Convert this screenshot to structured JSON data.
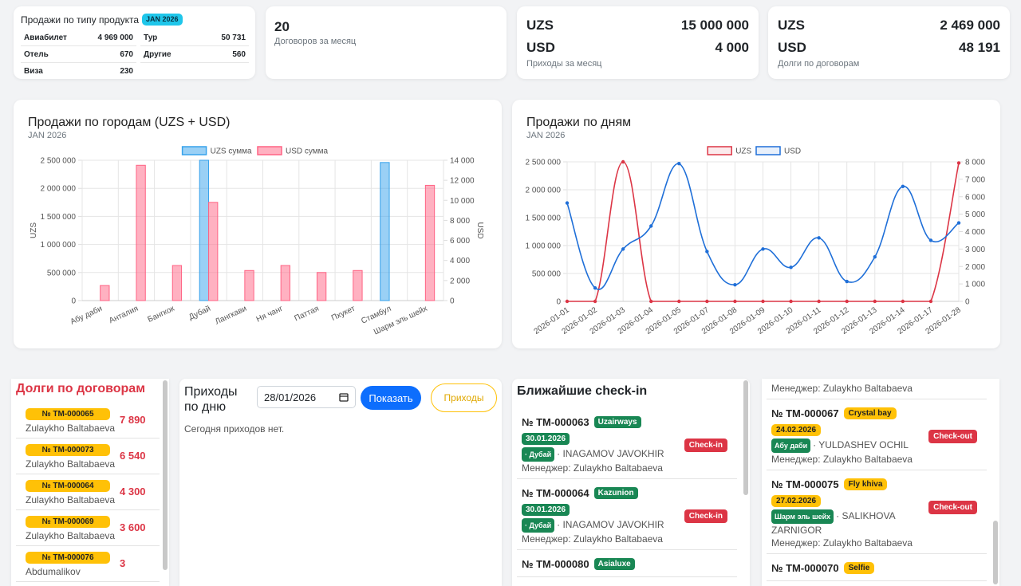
{
  "product_sales": {
    "title": "Продажи по типу продукта",
    "badge": "JAN 2026",
    "items": [
      {
        "label": "Авиабилет",
        "value": "4 969 000"
      },
      {
        "label": "Тур",
        "value": "50 731"
      },
      {
        "label": "Отель",
        "value": "670"
      },
      {
        "label": "Другие",
        "value": "560"
      },
      {
        "label": "Виза",
        "value": "230"
      }
    ]
  },
  "contracts": {
    "value": "20",
    "caption": "Договоров за месяц"
  },
  "income": {
    "rows": [
      {
        "currency": "UZS",
        "amount": "15 000 000"
      },
      {
        "currency": "USD",
        "amount": "4 000"
      }
    ],
    "caption": "Приходы за месяц"
  },
  "debts_summary": {
    "rows": [
      {
        "currency": "UZS",
        "amount": "2 469 000"
      },
      {
        "currency": "USD",
        "amount": "48 191"
      }
    ],
    "caption": "Долги по договорам"
  },
  "chart_data": [
    {
      "type": "bar",
      "title": "Продажи по городам (UZS + USD)",
      "subtitle": "JAN 2026",
      "categories": [
        "Абу даби",
        "Анталия",
        "Бангкок",
        "Дубай",
        "Лангкави",
        "Ня чанг",
        "Паттая",
        "Пхукет",
        "Стамбул",
        "Шарм эль шейх"
      ],
      "series": [
        {
          "name": "UZS сумма",
          "color": "#36a2eb",
          "values": [
            0,
            0,
            0,
            2500000,
            0,
            0,
            0,
            0,
            2460000,
            0
          ]
        },
        {
          "name": "USD сумма",
          "color": "#ff6384",
          "axis": "y2",
          "values": [
            1500,
            13500,
            3500,
            9800,
            3000,
            3500,
            2800,
            3000,
            0,
            11500
          ]
        }
      ],
      "ylabel": "UZS",
      "y2label": "USD",
      "ylim": [
        0,
        2500000
      ],
      "yticks": [
        0,
        {
          "value": 500000,
          "label": "500 000"
        },
        {
          "value": 1000000,
          "label": "1 000 000"
        },
        {
          "value": 1500000,
          "label": "1 500 000"
        },
        {
          "value": 2000000,
          "label": "2 000 000"
        },
        {
          "value": 2500000,
          "label": "2 500 000"
        }
      ],
      "y2lim": [
        0,
        14000
      ],
      "y2ticks": [
        0,
        {
          "value": 2000,
          "label": "2 000"
        },
        {
          "value": 4000,
          "label": "4 000"
        },
        {
          "value": 6000,
          "label": "6 000"
        },
        {
          "value": 8000,
          "label": "8 000"
        },
        {
          "value": 10000,
          "label": "10 000"
        },
        {
          "value": 12000,
          "label": "12 000"
        },
        {
          "value": 14000,
          "label": "14 000"
        }
      ],
      "grid": true,
      "legend": "top"
    },
    {
      "type": "line",
      "title": "Продажи по дням",
      "subtitle": "JAN 2026",
      "categories": [
        "2026-01-01",
        "2026-01-02",
        "2026-01-03",
        "2026-01-04",
        "2026-01-05",
        "2026-01-07",
        "2026-01-08",
        "2026-01-09",
        "2026-01-10",
        "2026-01-11",
        "2026-01-12",
        "2026-01-13",
        "2026-01-14",
        "2026-01-17",
        "2026-01-28"
      ],
      "series": [
        {
          "name": "UZS",
          "color": "#dc3545",
          "values": [
            0,
            0,
            2500000,
            0,
            0,
            0,
            0,
            0,
            0,
            0,
            0,
            0,
            0,
            0,
            2480000
          ]
        },
        {
          "name": "USD",
          "color": "#1f6fd8",
          "axis": "y2",
          "values": [
            5640,
            770,
            3000,
            4320,
            7900,
            2860,
            950,
            3000,
            1950,
            3640,
            1140,
            2550,
            6590,
            3500,
            4500
          ]
        }
      ],
      "ylim": [
        0,
        2500000
      ],
      "yticks": [
        0,
        {
          "value": 500000,
          "label": "500 000"
        },
        {
          "value": 1000000,
          "label": "1 000 000"
        },
        {
          "value": 1500000,
          "label": "1 500 000"
        },
        {
          "value": 2000000,
          "label": "2 000 000"
        },
        {
          "value": 2500000,
          "label": "2 500 000"
        }
      ],
      "y2lim": [
        0,
        8000
      ],
      "y2ticks": [
        0,
        {
          "value": 1000,
          "label": "1 000"
        },
        {
          "value": 2000,
          "label": "2 000"
        },
        {
          "value": 3000,
          "label": "3 000"
        },
        {
          "value": 4000,
          "label": "4 000"
        },
        {
          "value": 5000,
          "label": "5 000"
        },
        {
          "value": 6000,
          "label": "6 000"
        },
        {
          "value": 7000,
          "label": "7 000"
        },
        {
          "value": 8000,
          "label": "8 000"
        }
      ],
      "grid": true,
      "legend": "top"
    }
  ],
  "debts": {
    "title": "Долги по договорам",
    "items": [
      {
        "number": "№ TM-000065",
        "manager": "Zulaykho Baltabaeva",
        "amount": "7 890"
      },
      {
        "number": "№ TM-000073",
        "manager": "Zulaykho Baltabaeva",
        "amount": "6 540"
      },
      {
        "number": "№ TM-000064",
        "manager": "Zulaykho Baltabaeva",
        "amount": "4 300"
      },
      {
        "number": "№ TM-000069",
        "manager": "Zulaykho Baltabaeva",
        "amount": "3 600"
      },
      {
        "number": "№ TM-000076",
        "manager": "Abdumalikov",
        "amount": "3"
      }
    ]
  },
  "payments": {
    "title": "Приходы по дню",
    "date": "28/01/2026",
    "show_button": "Показать",
    "link_button": "Приходы",
    "empty": "Сегодня приходов нет."
  },
  "checkins": {
    "title": "Ближайшие check-in",
    "items": [
      {
        "number": "№ TM-000063",
        "airline": "Uzairways",
        "date": "30.01.2026",
        "city": "· Дубай",
        "client": "· INAGAMOV JAVOKHIR",
        "manager": "Менеджер: Zulaykho Baltabaeva",
        "status": "Check-in"
      },
      {
        "number": "№ TM-000064",
        "airline": "Kazunion",
        "date": "30.01.2026",
        "city": "· Дубай",
        "client": "· INAGAMOV JAVOKHIR",
        "manager": "Менеджер: Zulaykho Baltabaeva",
        "status": "Check-in"
      },
      {
        "number": "№ TM-000080",
        "airline": "Asialuxe"
      }
    ]
  },
  "checkouts": {
    "items": [
      {
        "manager": "Менеджер: Zulaykho Baltabaeva"
      },
      {
        "number": "№ TM-000067",
        "airline": "Crystal bay",
        "date": "24.02.2026",
        "city": "Абу даби",
        "client": "· YULDASHEV OCHIL",
        "manager": "Менеджер: Zulaykho Baltabaeva",
        "status": "Check-out"
      },
      {
        "number": "№ TM-000075",
        "airline": "Fly khiva",
        "date": "27.02.2026",
        "city": "Шарм эль шейх",
        "client": "· SALIKHOVA ZARNIGOR",
        "manager": "Менеджер: Zulaykho Baltabaeva",
        "status": "Check-out"
      },
      {
        "number": "№ TM-000070",
        "airline": "Selfie"
      }
    ]
  }
}
